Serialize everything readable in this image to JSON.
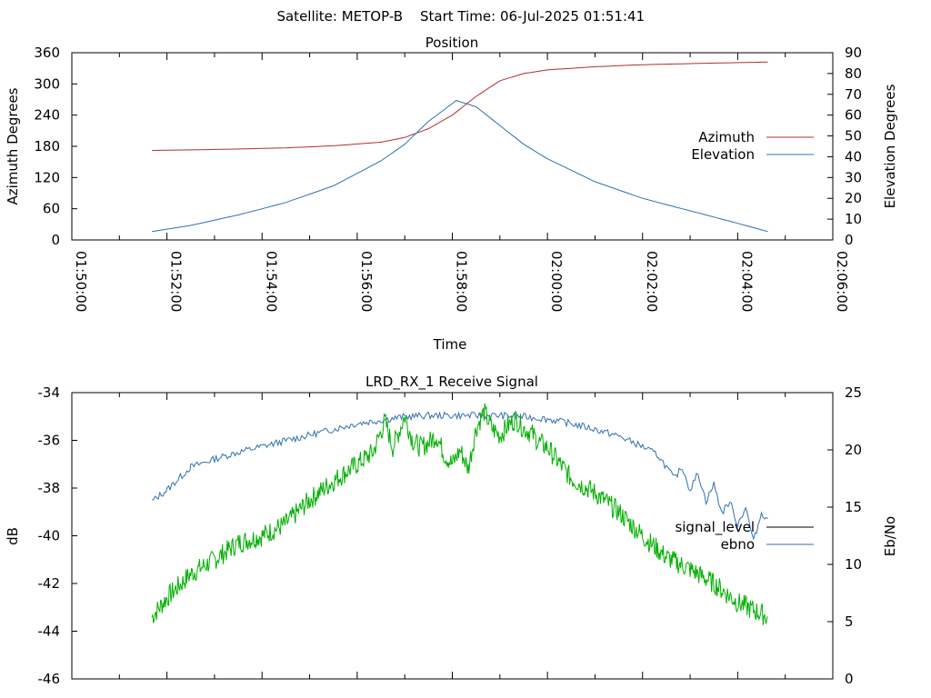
{
  "header": {
    "satellite_label": "Satellite: METOP-B",
    "start_time_label": "Start Time: 06-Jul-2025 01:51:41"
  },
  "colors": {
    "azimuth": "#b03030",
    "elevation": "#3070b0",
    "signal_level": "#000000",
    "signal_level_drawn": "#00b000",
    "ebno": "#3070b0"
  },
  "chart_data": [
    {
      "type": "line",
      "title": "Position",
      "xlabel": "Time",
      "ylabel": "Azimuth Degrees",
      "y2label": "Elevation Degrees",
      "xlim": [
        "01:50:00",
        "02:06:00"
      ],
      "xticks": [
        "01:50:00",
        "01:52:00",
        "01:54:00",
        "01:56:00",
        "01:58:00",
        "02:00:00",
        "02:02:00",
        "02:04:00",
        "02:06:00"
      ],
      "ylim": [
        0,
        360
      ],
      "yticks": [
        "0",
        "60",
        "120",
        "180",
        "240",
        "300",
        "360"
      ],
      "y2lim": [
        0,
        90
      ],
      "y2ticks": [
        "0",
        "10",
        "20",
        "30",
        "40",
        "50",
        "60",
        "70",
        "80",
        "90"
      ],
      "legend_position": "right",
      "series": [
        {
          "name": "Azimuth",
          "axis": "left",
          "x": [
            "01:51:41",
            "01:53:00",
            "01:54:30",
            "01:55:30",
            "01:56:30",
            "01:57:00",
            "01:57:30",
            "01:58:00",
            "01:58:30",
            "01:59:00",
            "01:59:30",
            "02:00:00",
            "02:01:00",
            "02:02:00",
            "02:03:00",
            "02:04:00",
            "02:04:38"
          ],
          "y": [
            172,
            174,
            177,
            181,
            188,
            197,
            214,
            240,
            276,
            306,
            320,
            327,
            333,
            337,
            339,
            341,
            342
          ]
        },
        {
          "name": "Elevation",
          "axis": "right",
          "x": [
            "01:51:41",
            "01:52:30",
            "01:53:30",
            "01:54:30",
            "01:55:30",
            "01:56:30",
            "01:57:00",
            "01:57:30",
            "01:58:05",
            "01:58:30",
            "01:59:00",
            "01:59:30",
            "02:00:00",
            "02:01:00",
            "02:02:00",
            "02:03:00",
            "02:04:00",
            "02:04:38"
          ],
          "y": [
            4,
            7,
            12,
            18,
            26,
            38,
            46,
            57,
            67,
            64,
            55,
            46,
            39,
            28,
            20,
            14,
            8,
            4
          ]
        }
      ]
    },
    {
      "type": "line",
      "title": "LRD_RX_1 Receive Signal",
      "ylabel": "dB",
      "y2label": "Eb/No",
      "xlim": [
        "01:50:00",
        "02:06:00"
      ],
      "ylim": [
        -46,
        -34
      ],
      "yticks": [
        "-34",
        "-36",
        "-38",
        "-40",
        "-42",
        "-44",
        "-46"
      ],
      "y2lim": [
        0,
        25
      ],
      "y2ticks": [
        "0",
        "5",
        "10",
        "15",
        "20",
        "25"
      ],
      "legend_position": "right",
      "series": [
        {
          "name": "signal_level",
          "axis": "left",
          "x": [
            "01:51:41",
            "01:52:00",
            "01:52:30",
            "01:53:00",
            "01:53:30",
            "01:54:00",
            "01:54:30",
            "01:55:00",
            "01:55:30",
            "01:56:00",
            "01:56:20",
            "01:56:35",
            "01:56:45",
            "01:57:00",
            "01:57:10",
            "01:57:20",
            "01:57:30",
            "01:57:40",
            "01:57:50",
            "01:58:00",
            "01:58:10",
            "01:58:20",
            "01:58:30",
            "01:58:40",
            "01:58:50",
            "01:59:00",
            "01:59:10",
            "01:59:20",
            "01:59:30",
            "01:59:40",
            "01:59:50",
            "02:00:00",
            "02:00:30",
            "02:01:00",
            "02:01:30",
            "02:02:00",
            "02:02:30",
            "02:03:00",
            "02:03:30",
            "02:04:00",
            "02:04:38"
          ],
          "y": [
            -43.4,
            -42.6,
            -41.6,
            -41.0,
            -40.3,
            -40.0,
            -39.5,
            -38.5,
            -37.7,
            -37.0,
            -36.5,
            -35.2,
            -36.3,
            -35.0,
            -36.0,
            -36.3,
            -36.1,
            -35.8,
            -36.6,
            -37.0,
            -36.4,
            -37.2,
            -35.5,
            -34.8,
            -35.5,
            -35.8,
            -35.4,
            -35.1,
            -35.5,
            -35.7,
            -36.1,
            -36.3,
            -37.6,
            -38.2,
            -39.0,
            -40.0,
            -40.9,
            -41.4,
            -42.0,
            -42.8,
            -43.4
          ]
        },
        {
          "name": "ebno",
          "axis": "right",
          "x": [
            "01:51:41",
            "01:52:00",
            "01:52:15",
            "01:52:30",
            "01:53:00",
            "01:53:30",
            "01:54:00",
            "01:54:30",
            "01:55:00",
            "01:55:30",
            "01:56:00",
            "01:56:30",
            "01:57:00",
            "01:57:30",
            "01:58:00",
            "01:58:30",
            "01:59:00",
            "01:59:30",
            "02:00:00",
            "02:00:30",
            "02:01:00",
            "02:01:30",
            "02:02:00",
            "02:02:20",
            "02:02:30",
            "02:02:40",
            "02:02:50",
            "02:03:00",
            "02:03:10",
            "02:03:20",
            "02:03:30",
            "02:03:40",
            "02:03:50",
            "02:04:00",
            "02:04:10",
            "02:04:20",
            "02:04:30",
            "02:04:38"
          ],
          "y": [
            15.5,
            16.5,
            17.5,
            18.5,
            19.2,
            19.8,
            20.3,
            20.8,
            21.3,
            21.8,
            22.3,
            22.6,
            22.9,
            23.0,
            23.0,
            23.0,
            23.0,
            22.9,
            22.7,
            22.3,
            21.8,
            21.2,
            20.3,
            19.5,
            18.5,
            17.5,
            18.5,
            16.5,
            18.0,
            15.5,
            17.0,
            14.5,
            15.5,
            13.5,
            15.0,
            12.0,
            14.5,
            14.0
          ]
        }
      ]
    }
  ]
}
